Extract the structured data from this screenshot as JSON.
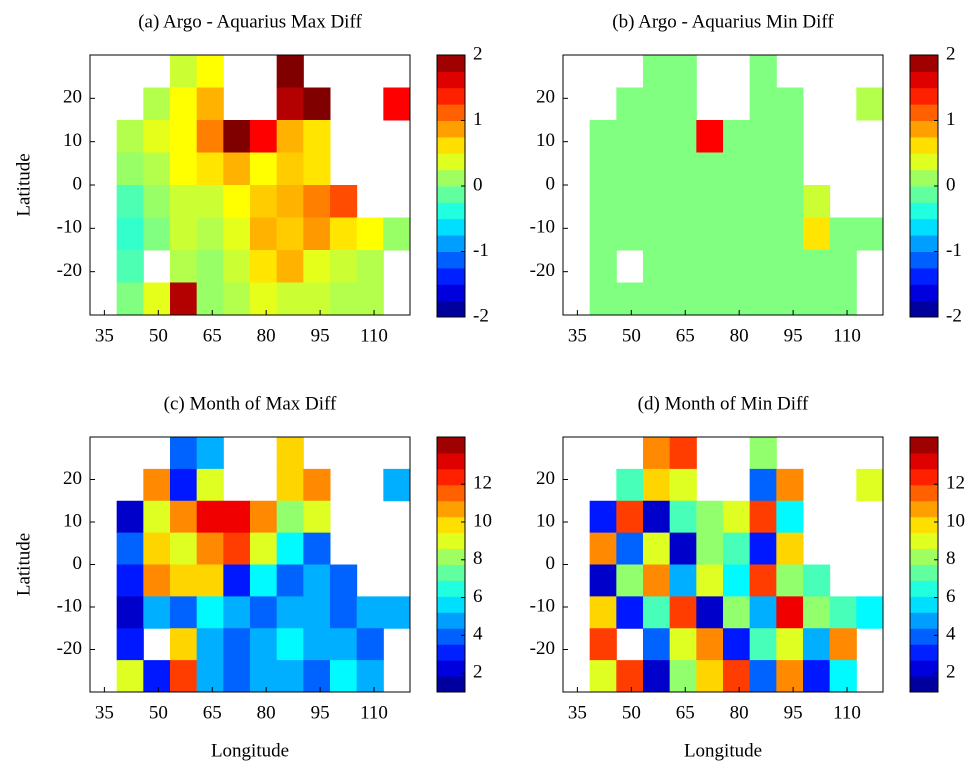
{
  "chart_data": [
    {
      "type": "heatmap",
      "title": "(a) Argo - Aquarius Max Diff",
      "ylabel": "Latitude",
      "xlim": [
        31,
        120
      ],
      "ylim": [
        -30,
        30
      ],
      "xticks": [
        35,
        50,
        65,
        80,
        95,
        110
      ],
      "yticks": [
        -20,
        -10,
        0,
        10,
        20
      ],
      "clim": [
        -2,
        2
      ],
      "cticks": [
        -2,
        -1,
        0,
        1,
        2
      ],
      "colormap": "jet",
      "z": [
        [
          null,
          null,
          null,
          0.3,
          0.5,
          null,
          null,
          2,
          null,
          null,
          null,
          null
        ],
        [
          null,
          null,
          0.2,
          0.5,
          0.8,
          null,
          null,
          1.8,
          2,
          null,
          null,
          1.5
        ],
        [
          null,
          0.2,
          0.4,
          0.5,
          1,
          2,
          1.5,
          0.8,
          0.6,
          null,
          null,
          null
        ],
        [
          null,
          0.1,
          0.2,
          0.5,
          0.6,
          0.8,
          0.5,
          0.7,
          0.6,
          null,
          null,
          null
        ],
        [
          null,
          -0.2,
          0.1,
          0.3,
          0.3,
          0.5,
          0.7,
          0.8,
          1,
          1.2,
          null,
          null
        ],
        [
          null,
          -0.3,
          0,
          0.3,
          0.2,
          0.4,
          0.8,
          0.7,
          0.9,
          0.6,
          0.5,
          0.1
        ],
        [
          null,
          -0.2,
          null,
          0.2,
          0.1,
          0.3,
          0.6,
          0.8,
          0.4,
          0.3,
          0.2,
          null
        ],
        [
          null,
          0,
          0.4,
          1.8,
          0.1,
          0.2,
          0.4,
          0.3,
          0.3,
          0.2,
          0.2,
          null
        ]
      ]
    },
    {
      "type": "heatmap",
      "title": "(b) Argo - Aquarius Min Diff",
      "xlim": [
        31,
        120
      ],
      "ylim": [
        -30,
        30
      ],
      "xticks": [
        35,
        50,
        65,
        80,
        95,
        110
      ],
      "yticks": [
        -20,
        -10,
        0,
        10,
        20
      ],
      "clim": [
        -2,
        2
      ],
      "cticks": [
        -2,
        -1,
        0,
        1,
        2
      ],
      "colormap": "jet",
      "z": [
        [
          null,
          null,
          null,
          0,
          0,
          null,
          null,
          0,
          null,
          null,
          null,
          null
        ],
        [
          null,
          null,
          0,
          0,
          0,
          null,
          null,
          0,
          0,
          null,
          null,
          0.2
        ],
        [
          null,
          0,
          0,
          0,
          0,
          1.5,
          0,
          0,
          0,
          null,
          null,
          null
        ],
        [
          null,
          0,
          0,
          0,
          0,
          0,
          0,
          0,
          0,
          null,
          null,
          null
        ],
        [
          null,
          0,
          0,
          0,
          0,
          0,
          0,
          0,
          0,
          0.3,
          null,
          null
        ],
        [
          null,
          0,
          0,
          0,
          0,
          0,
          0,
          0,
          0,
          0.6,
          0,
          0
        ],
        [
          null,
          0,
          null,
          0,
          0,
          0,
          0,
          0,
          0,
          0,
          0,
          null
        ],
        [
          null,
          0,
          0,
          0,
          0,
          0,
          0,
          0,
          0,
          0,
          0,
          null
        ]
      ]
    },
    {
      "type": "heatmap",
      "title": "(c) Month of Max Diff",
      "xlabel": "Longitude",
      "ylabel": "Latitude",
      "xlim": [
        31,
        120
      ],
      "ylim": [
        -30,
        30
      ],
      "xticks": [
        35,
        50,
        65,
        80,
        95,
        110
      ],
      "yticks": [
        -20,
        -10,
        0,
        10,
        20
      ],
      "clim": [
        1,
        14.5
      ],
      "cticks": [
        2,
        4,
        6,
        8,
        10,
        12
      ],
      "colormap": "jet",
      "z": [
        [
          null,
          null,
          null,
          4,
          5,
          null,
          null,
          10,
          null,
          null,
          null,
          null
        ],
        [
          null,
          null,
          11,
          3,
          9,
          null,
          null,
          10,
          11,
          null,
          null,
          5
        ],
        [
          null,
          2,
          9,
          11,
          13,
          13,
          11,
          8,
          9,
          null,
          null,
          null
        ],
        [
          null,
          4,
          10,
          9,
          11,
          12,
          9,
          6,
          4,
          null,
          null,
          null
        ],
        [
          null,
          3,
          11,
          10,
          10,
          3,
          6,
          4,
          5,
          4,
          null,
          null
        ],
        [
          null,
          2,
          5,
          4,
          6,
          5,
          4,
          5,
          5,
          4,
          5,
          5
        ],
        [
          null,
          3,
          null,
          10,
          5,
          4,
          5,
          6,
          5,
          5,
          4,
          null
        ],
        [
          null,
          9,
          3,
          12,
          5,
          4,
          5,
          5,
          4,
          6,
          5,
          null
        ]
      ]
    },
    {
      "type": "heatmap",
      "title": "(d) Month of Min Diff",
      "xlabel": "Longitude",
      "xlim": [
        31,
        120
      ],
      "ylim": [
        -30,
        30
      ],
      "xticks": [
        35,
        50,
        65,
        80,
        95,
        110
      ],
      "yticks": [
        -20,
        -10,
        0,
        10,
        20
      ],
      "clim": [
        1,
        14.5
      ],
      "cticks": [
        2,
        4,
        6,
        8,
        10,
        12
      ],
      "colormap": "jet",
      "z": [
        [
          null,
          null,
          null,
          11,
          12,
          null,
          null,
          8,
          null,
          null,
          null,
          null
        ],
        [
          null,
          null,
          7,
          10,
          9,
          null,
          null,
          4,
          11,
          null,
          null,
          9
        ],
        [
          null,
          3,
          12,
          2,
          7,
          8,
          9,
          12,
          6,
          null,
          null,
          null
        ],
        [
          null,
          11,
          4,
          9,
          2,
          8,
          7,
          3,
          10,
          null,
          null,
          null
        ],
        [
          null,
          2,
          8,
          11,
          5,
          9,
          6,
          12,
          8,
          7,
          null,
          null
        ],
        [
          null,
          10,
          3,
          7,
          12,
          2,
          8,
          5,
          13,
          8,
          7,
          6
        ],
        [
          null,
          12,
          null,
          4,
          9,
          11,
          3,
          7,
          9,
          5,
          11,
          null
        ],
        [
          null,
          9,
          12,
          2,
          8,
          10,
          12,
          4,
          11,
          3,
          6,
          null
        ]
      ]
    }
  ]
}
